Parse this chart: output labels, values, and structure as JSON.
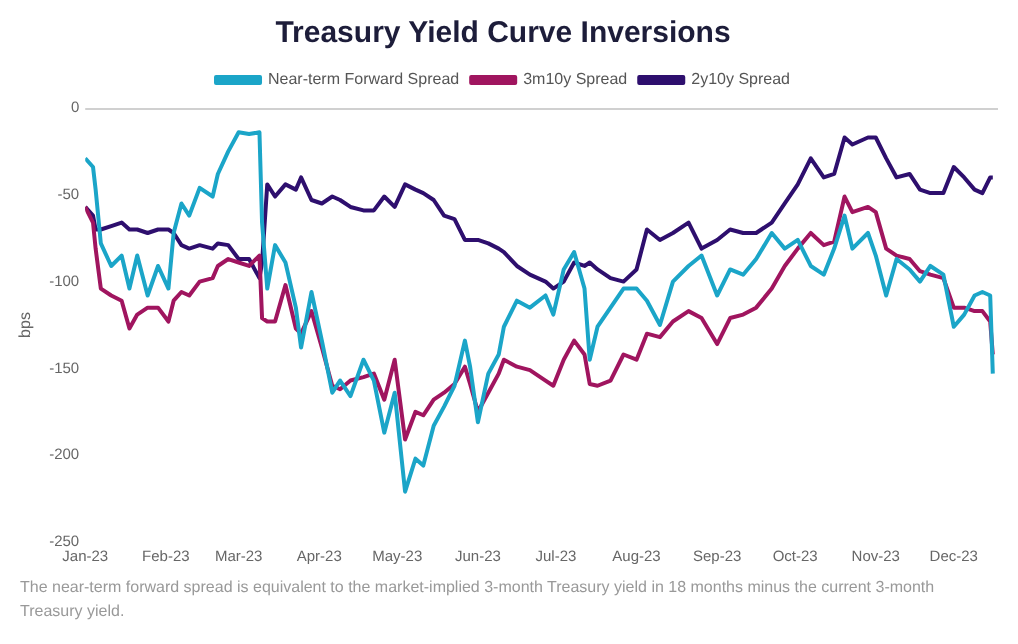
{
  "chart_data": {
    "type": "line",
    "title": "Treasury Yield Curve Inversions",
    "ylabel": "bps",
    "x": [
      "2023-01-01",
      "2023-01-04",
      "2023-01-05",
      "2023-01-07",
      "2023-01-11",
      "2023-01-15",
      "2023-01-18",
      "2023-01-21",
      "2023-01-25",
      "2023-01-29",
      "2023-02-02",
      "2023-02-04",
      "2023-02-07",
      "2023-02-10",
      "2023-02-14",
      "2023-02-19",
      "2023-02-21",
      "2023-02-25",
      "2023-03-01",
      "2023-03-05",
      "2023-03-09",
      "2023-03-10",
      "2023-03-12",
      "2023-03-15",
      "2023-03-19",
      "2023-03-23",
      "2023-03-25",
      "2023-03-29",
      "2023-04-02",
      "2023-04-06",
      "2023-04-09",
      "2023-04-13",
      "2023-04-18",
      "2023-04-22",
      "2023-04-26",
      "2023-04-30",
      "2023-05-04",
      "2023-05-08",
      "2023-05-11",
      "2023-05-15",
      "2023-05-19",
      "2023-05-23",
      "2023-05-27",
      "2023-05-29",
      "2023-06-01",
      "2023-06-05",
      "2023-06-09",
      "2023-06-11",
      "2023-06-16",
      "2023-06-21",
      "2023-06-27",
      "2023-06-30",
      "2023-07-04",
      "2023-07-08",
      "2023-07-12",
      "2023-07-14",
      "2023-07-17",
      "2023-07-22",
      "2023-07-27",
      "2023-08-01",
      "2023-08-05",
      "2023-08-10",
      "2023-08-15",
      "2023-08-21",
      "2023-08-26",
      "2023-09-01",
      "2023-09-06",
      "2023-09-11",
      "2023-09-16",
      "2023-09-22",
      "2023-09-27",
      "2023-10-02",
      "2023-10-07",
      "2023-10-12",
      "2023-10-16",
      "2023-10-20",
      "2023-10-23",
      "2023-10-29",
      "2023-11-01",
      "2023-11-05",
      "2023-11-09",
      "2023-11-14",
      "2023-11-18",
      "2023-11-22",
      "2023-11-27",
      "2023-12-01",
      "2023-12-05",
      "2023-12-09",
      "2023-12-12",
      "2023-12-15",
      "2023-12-16"
    ],
    "series": [
      {
        "name": "Near-term Forward Spread",
        "color": "#1ba5c8",
        "values": [
          -29,
          -34,
          -47,
          -78,
          -91,
          -85,
          -104,
          -85,
          -108,
          -91,
          -104,
          -72,
          -55,
          -62,
          -46,
          -51,
          -38,
          -25,
          -14,
          -15,
          -14,
          -66,
          -104,
          -79,
          -89,
          -115,
          -138,
          -106,
          -134,
          -164,
          -157,
          -166,
          -145,
          -157,
          -187,
          -164,
          -221,
          -202,
          -206,
          -183,
          -172,
          -160,
          -134,
          -149,
          -181,
          -153,
          -142,
          -126,
          -111,
          -115,
          -108,
          -119,
          -93,
          -83,
          -104,
          -145,
          -126,
          -115,
          -104,
          -104,
          -111,
          -125,
          -100,
          -91,
          -85,
          -108,
          -93,
          -96,
          -87,
          -72,
          -81,
          -76,
          -91,
          -96,
          -81,
          -62,
          -81,
          -72,
          -85,
          -108,
          -87,
          -93,
          -100,
          -91,
          -96,
          -126,
          -119,
          -108,
          -106,
          -108,
          -153
        ]
      },
      {
        "name": "3m10y Spread",
        "color": "#a0155f",
        "values": [
          -57,
          -66,
          -81,
          -104,
          -108,
          -111,
          -127,
          -119,
          -115,
          -115,
          -123,
          -111,
          -106,
          -108,
          -100,
          -98,
          -91,
          -87,
          -89,
          -91,
          -85,
          -121,
          -123,
          -123,
          -102,
          -127,
          -130,
          -117,
          -138,
          -160,
          -162,
          -157,
          -155,
          -153,
          -168,
          -145,
          -191,
          -175,
          -177,
          -168,
          -164,
          -159,
          -149,
          -159,
          -175,
          -164,
          -153,
          -145,
          -149,
          -151,
          -157,
          -160,
          -145,
          -134,
          -142,
          -159,
          -160,
          -157,
          -142,
          -145,
          -130,
          -132,
          -123,
          -117,
          -121,
          -136,
          -121,
          -119,
          -115,
          -104,
          -91,
          -81,
          -72,
          -79,
          -77,
          -51,
          -60,
          -57,
          -60,
          -81,
          -85,
          -87,
          -94,
          -96,
          -98,
          -115,
          -115,
          -117,
          -117,
          -123,
          -142
        ]
      },
      {
        "name": "2y10y Spread",
        "color": "#2e0f6e",
        "values": [
          -57,
          -62,
          -70,
          -70,
          -68,
          -66,
          -70,
          -70,
          -72,
          -70,
          -70,
          -72,
          -79,
          -81,
          -79,
          -81,
          -78,
          -79,
          -87,
          -87,
          -98,
          -89,
          -44,
          -51,
          -44,
          -47,
          -40,
          -53,
          -55,
          -51,
          -53,
          -57,
          -59,
          -59,
          -51,
          -57,
          -44,
          -47,
          -49,
          -53,
          -62,
          -64,
          -76,
          -76,
          -76,
          -78,
          -81,
          -83,
          -91,
          -96,
          -100,
          -104,
          -100,
          -89,
          -91,
          -89,
          -93,
          -98,
          -100,
          -93,
          -70,
          -76,
          -72,
          -66,
          -81,
          -76,
          -70,
          -72,
          -72,
          -66,
          -55,
          -44,
          -29,
          -40,
          -38,
          -17,
          -21,
          -17,
          -17,
          -29,
          -40,
          -38,
          -47,
          -49,
          -49,
          -34,
          -40,
          -47,
          -49,
          -40,
          -40
        ]
      }
    ],
    "xlim": [
      "2023-01-01",
      "2023-12-18"
    ],
    "xticks": [
      {
        "value": "2023-01-01",
        "label": "Jan-23"
      },
      {
        "value": "2023-02-01",
        "label": "Feb-23"
      },
      {
        "value": "2023-03-01",
        "label": "Mar-23"
      },
      {
        "value": "2023-04-01",
        "label": "Apr-23"
      },
      {
        "value": "2023-05-01",
        "label": "May-23"
      },
      {
        "value": "2023-06-01",
        "label": "Jun-23"
      },
      {
        "value": "2023-07-01",
        "label": "Jul-23"
      },
      {
        "value": "2023-08-01",
        "label": "Aug-23"
      },
      {
        "value": "2023-09-01",
        "label": "Sep-23"
      },
      {
        "value": "2023-10-01",
        "label": "Oct-23"
      },
      {
        "value": "2023-11-01",
        "label": "Nov-23"
      },
      {
        "value": "2023-12-01",
        "label": "Dec-23"
      }
    ],
    "ylim": [
      -250,
      0
    ],
    "yticks": [
      0,
      -50,
      -100,
      -150,
      -200,
      -250
    ],
    "grid": false,
    "legend": "top",
    "marker": "none",
    "line_style": "solid",
    "annotations": [
      "The near-term forward spread is equivalent to the market-implied 3-month Treasury yield in 18 months minus the current 3-month Treasury yield."
    ]
  }
}
